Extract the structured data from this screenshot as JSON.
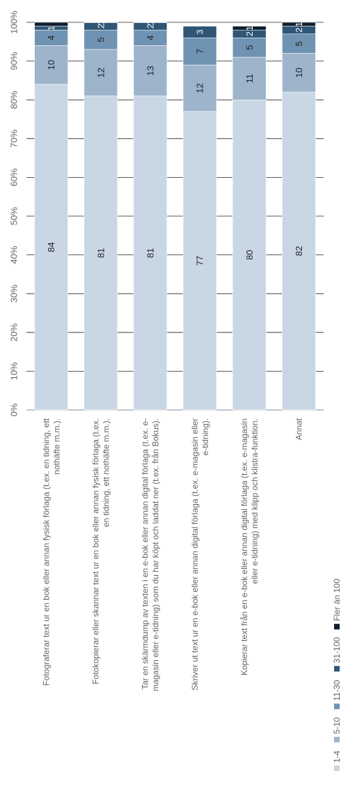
{
  "chart_data": {
    "type": "bar",
    "stacked": true,
    "orientation": "vertical",
    "y_ticks": [
      "0%",
      "10%",
      "20%",
      "30%",
      "40%",
      "50%",
      "60%",
      "70%",
      "80%",
      "90%",
      "100%"
    ],
    "ylim": [
      0,
      100
    ],
    "grid": true,
    "legend_position": "bottom",
    "categories": [
      [
        "Fotograferar text ur en bok eller annan fysisk förlaga (t.ex. en tidning, ett",
        "nothäfte m.m.)."
      ],
      [
        "Fotokopierar eller skannar text ur en bok eller annan fysisk förlaga (t.ex.",
        "en tidning, ett nothäfte m.m.)."
      ],
      [
        "Tar en skärmdump av texten i en e-bok eller annan digital förlaga (t.ex. e-",
        "magasin eller e-tidning) som du har köpt och laddat ner (t.ex. från Bokus)."
      ],
      [
        "Skriver ut text ur en e-bok eller annan digital förlaga (t.ex. e-magasin eller",
        "e-tidning)."
      ],
      [
        "Kopierar text från en e-bok eller annan digital förlaga (t.ex. e-magasin",
        "eller e-tidning) med klipp och klistra-funktion."
      ],
      [
        "Annat"
      ]
    ],
    "series": [
      {
        "name": "1-4",
        "color": "#c9d7e5",
        "values": [
          84,
          81,
          81,
          77,
          80,
          82
        ]
      },
      {
        "name": "5-10",
        "color": "#9db4cb",
        "values": [
          10,
          12,
          13,
          12,
          11,
          10
        ]
      },
      {
        "name": "11-30",
        "color": "#6f93b2",
        "values": [
          4,
          5,
          4,
          7,
          5,
          5
        ]
      },
      {
        "name": "31-100",
        "color": "#2f5577",
        "values": [
          1,
          2,
          2,
          3,
          2,
          2
        ]
      },
      {
        "name": "Fler än 100",
        "color": "#0e1e30",
        "values": [
          1,
          1,
          1,
          0,
          1,
          1
        ]
      }
    ],
    "data_labels": [
      [
        "84",
        "10",
        "4",
        "1",
        ""
      ],
      [
        "81",
        "12",
        "5",
        "2",
        "1"
      ],
      [
        "81",
        "13",
        "4",
        "2",
        "1"
      ],
      [
        "77",
        "12",
        "7",
        "3",
        "0"
      ],
      [
        "80",
        "11",
        "5",
        "2",
        "1"
      ],
      [
        "82",
        "10",
        "5",
        "2",
        "1"
      ]
    ]
  }
}
